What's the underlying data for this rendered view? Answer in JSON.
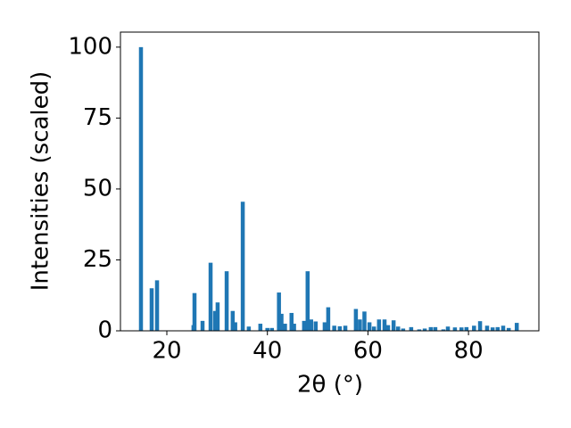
{
  "chart_data": {
    "type": "bar",
    "x": [
      14.85,
      16.98,
      18.05,
      25.3,
      25.5,
      27.1,
      28.7,
      29.6,
      30.1,
      31.9,
      33.1,
      33.6,
      35.1,
      36.3,
      38.6,
      40.0,
      40.9,
      42.3,
      42.8,
      43.5,
      44.8,
      45.3,
      47.3,
      48.0,
      48.7,
      49.6,
      51.4,
      52.1,
      53.3,
      54.4,
      55.5,
      57.6,
      58.4,
      59.3,
      60.3,
      61.2,
      62.2,
      63.3,
      64.0,
      65.1,
      66.0,
      67.0,
      68.6,
      70.2,
      71.3,
      72.5,
      73.4,
      75.0,
      75.9,
      77.3,
      78.6,
      79.6,
      81.1,
      82.3,
      83.7,
      84.8,
      85.8,
      86.9,
      88.0,
      89.6
    ],
    "values": [
      100,
      15,
      17.8,
      2,
      13.3,
      3.5,
      24,
      7,
      10,
      21,
      7,
      3,
      45.5,
      1.5,
      2.5,
      1,
      1,
      13.5,
      6,
      2.5,
      6.3,
      2.5,
      3.5,
      21,
      4,
      3.3,
      3,
      8.3,
      1.8,
      1.6,
      1.8,
      7.7,
      4,
      6.8,
      3,
      1.5,
      4,
      4,
      2,
      3.7,
      1.5,
      0.8,
      1.3,
      0.5,
      0.8,
      1.3,
      1.3,
      0.5,
      1.5,
      1.2,
      1.2,
      1.3,
      1.8,
      3.4,
      1.8,
      1.2,
      1.3,
      1.8,
      1,
      2.8
    ],
    "color": "#1f77b4",
    "xlabel": "2θ (°)",
    "ylabel": "Intensities (scaled)",
    "xlim": [
      10.77,
      94.0
    ],
    "xticks": [
      20,
      40,
      60,
      80
    ],
    "ylim": [
      0,
      105.3
    ],
    "yticks": [
      0,
      25,
      50,
      75,
      100
    ]
  }
}
